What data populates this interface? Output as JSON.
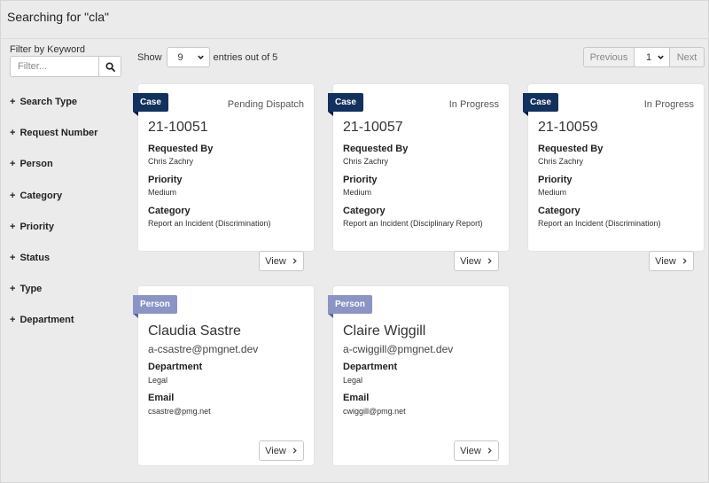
{
  "header": {
    "title": "Searching for \"cla\""
  },
  "filter": {
    "label": "Filter by Keyword",
    "placeholder": "Filter...",
    "search_icon": "search-icon"
  },
  "facets": [
    "Search Type",
    "Request Number",
    "Person",
    "Category",
    "Priority",
    "Status",
    "Type",
    "Department"
  ],
  "facet_prefix": "+",
  "toolbar": {
    "show_label": "Show",
    "entries_value": "9",
    "entries_suffix": "entries out of 5"
  },
  "pager": {
    "prev": "Previous",
    "page": "1",
    "next": "Next"
  },
  "cases": [
    {
      "tag": "Case",
      "status": "Pending Dispatch",
      "id": "21-10051",
      "requested_by_label": "Requested By",
      "requested_by": "Chris Zachry",
      "priority_label": "Priority",
      "priority": "Medium",
      "category_label": "Category",
      "category": "Report an Incident (Discrimination)",
      "view": "View"
    },
    {
      "tag": "Case",
      "status": "In Progress",
      "id": "21-10057",
      "requested_by_label": "Requested By",
      "requested_by": "Chris Zachry",
      "priority_label": "Priority",
      "priority": "Medium",
      "category_label": "Category",
      "category": "Report an Incident (Disciplinary Report)",
      "view": "View"
    },
    {
      "tag": "Case",
      "status": "In Progress",
      "id": "21-10059",
      "requested_by_label": "Requested By",
      "requested_by": "Chris Zachry",
      "priority_label": "Priority",
      "priority": "Medium",
      "category_label": "Category",
      "category": "Report an Incident (Discrimination)",
      "view": "View"
    }
  ],
  "people": [
    {
      "tag": "Person",
      "name": "Claudia Sastre",
      "username": "a-csastre@pmgnet.dev",
      "department_label": "Department",
      "department": "Legal",
      "email_label": "Email",
      "email": "csastre@pmg.net",
      "view": "View"
    },
    {
      "tag": "Person",
      "name": "Claire Wiggill",
      "username": "a-cwiggill@pmgnet.dev",
      "department_label": "Department",
      "department": "Legal",
      "email_label": "Email",
      "email": "cwiggill@pmg.net",
      "view": "View"
    }
  ],
  "colors": {
    "case_tag": "#13315e",
    "person_tag": "#8b94c4",
    "background": "#ebebeb"
  }
}
